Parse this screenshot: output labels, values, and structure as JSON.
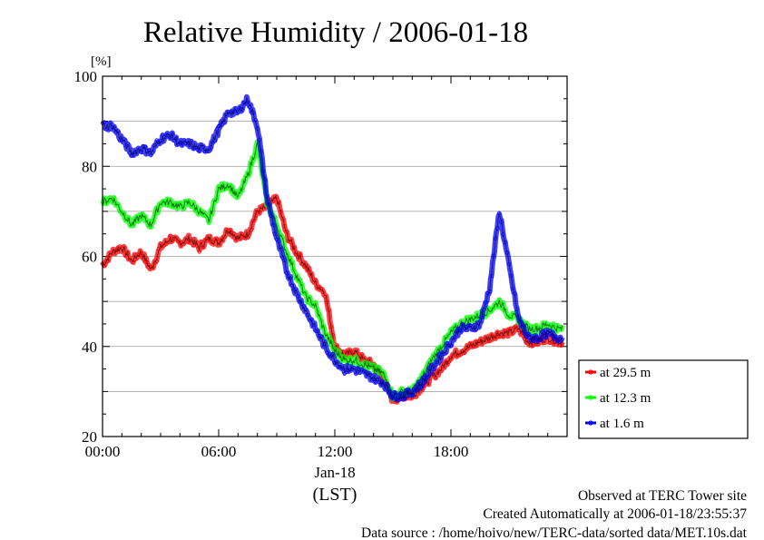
{
  "chart_data": {
    "type": "line",
    "title": "Relative Humidity / 2006-01-18",
    "ylabel": "[%]",
    "xlabel": "(LST)",
    "date_label": "Jan-18",
    "ylim": [
      20,
      100
    ],
    "yticks": [
      "20",
      "40",
      "60",
      "80",
      "100"
    ],
    "xlim": [
      "00:00",
      "24:00"
    ],
    "xticks": [
      "00:00",
      "06:00",
      "12:00",
      "18:00"
    ],
    "grid": true,
    "legend_position": "right",
    "x": [
      "00:00",
      "00:30",
      "01:00",
      "01:30",
      "02:00",
      "02:30",
      "03:00",
      "03:30",
      "04:00",
      "04:30",
      "05:00",
      "05:30",
      "06:00",
      "06:30",
      "07:00",
      "07:30",
      "08:00",
      "08:30",
      "09:00",
      "09:30",
      "10:00",
      "10:30",
      "11:00",
      "11:30",
      "12:00",
      "12:30",
      "13:00",
      "13:30",
      "14:00",
      "14:30",
      "15:00",
      "15:30",
      "16:00",
      "16:30",
      "17:00",
      "17:30",
      "18:00",
      "18:30",
      "19:00",
      "19:30",
      "20:00",
      "20:30",
      "21:00",
      "21:30",
      "22:00",
      "22:30",
      "23:00",
      "23:30"
    ],
    "series": [
      {
        "name": "at 29.5 m",
        "color": "#ff0000",
        "values": [
          58,
          61,
          62,
          59,
          61,
          57,
          62,
          64,
          63,
          64,
          62,
          64,
          63,
          66,
          64,
          65,
          70,
          71,
          73,
          65,
          61,
          58,
          54,
          52,
          40,
          38,
          39,
          37,
          36,
          33,
          28,
          29,
          29,
          31,
          33,
          35,
          38,
          39,
          40,
          41,
          42,
          43,
          43,
          44,
          41,
          41,
          42,
          41
        ]
      },
      {
        "name": "at 12.3 m",
        "color": "#00ff00",
        "values": [
          72,
          73,
          70,
          67,
          69,
          67,
          72,
          72,
          71,
          72,
          70,
          68,
          75,
          76,
          73,
          78,
          85,
          72,
          67,
          61,
          56,
          51,
          49,
          43,
          39,
          37,
          37,
          36,
          35,
          34,
          29,
          30,
          30,
          33,
          37,
          40,
          43,
          45,
          46,
          47,
          48,
          50,
          47,
          46,
          44,
          44,
          45,
          44
        ]
      },
      {
        "name": "at 1.6 m",
        "color": "#0000ff",
        "values": [
          89,
          89,
          86,
          83,
          84,
          83,
          86,
          87,
          85,
          85,
          84,
          84,
          88,
          92,
          92,
          95,
          89,
          73,
          64,
          57,
          52,
          48,
          44,
          40,
          37,
          35,
          35,
          34,
          33,
          32,
          29,
          29,
          30,
          32,
          35,
          38,
          41,
          44,
          44,
          45,
          53,
          70,
          58,
          46,
          42,
          42,
          43,
          42
        ]
      }
    ],
    "annotations": [
      "Observed at TERC Tower site",
      "Created Automatically at 2006-01-18/23:55:37",
      "Data source : /home/hoivo/new/TERC-data/sorted  data/MET.10s.dat"
    ]
  }
}
